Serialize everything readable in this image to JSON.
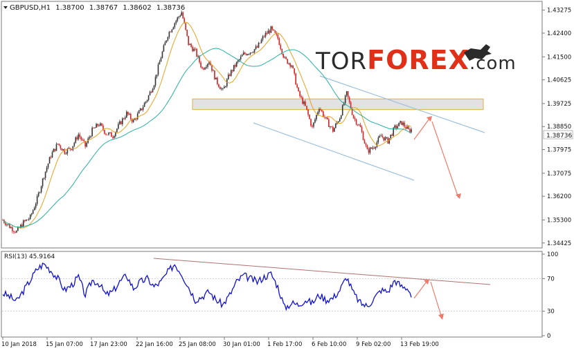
{
  "main_chart": {
    "header": {
      "symbol": "GBPUSD,H1",
      "open": "1.38700",
      "high": "1.38767",
      "low": "1.38602",
      "close": "1.38736"
    },
    "watermark": {
      "part1": "TOR",
      "part2": "FOREX",
      "part3": ".com"
    },
    "current_price_label": "1.38736",
    "colors": {
      "candle_up": "#333333",
      "candle_down": "#d42020",
      "ma_fast": "#e8a020",
      "ma_slow": "#27b0a0",
      "zone_fill": "#d8d8d8",
      "zone_border": "#e0b040",
      "channel": "#9fc0dc",
      "forecast_arrow": "#f07a6a"
    }
  },
  "rsi_panel": {
    "label": "RSI(13) 45.9164",
    "color": "#1010d0",
    "trendline_color": "#b07070"
  },
  "chart_data": [
    {
      "type": "candlestick",
      "title": "GBPUSD,H1",
      "ylim": [
        1.3442,
        1.4345
      ],
      "y_ticks": [
        "1.43275",
        "1.42400",
        "1.41500",
        "1.40625",
        "1.39725",
        "1.38850",
        "1.37975",
        "1.37075",
        "1.36200",
        "1.35300",
        "1.34425"
      ],
      "x_ticks": [
        "10 Jan 2018",
        "15 Jan 07:00",
        "17 Jan 23:00",
        "22 Jan 16:00",
        "25 Jan 08:00",
        "30 Jan 01:00",
        "1 Feb 17:00",
        "6 Feb 10:00",
        "9 Feb 02:00",
        "13 Feb 19:00"
      ],
      "series": [
        {
          "name": "GBPUSD",
          "x": [
            0,
            10,
            20,
            30,
            40,
            50,
            60,
            70,
            80,
            90,
            100,
            110,
            120,
            130,
            140,
            150,
            160,
            170,
            180,
            190,
            200,
            210,
            220,
            230,
            240,
            250,
            260,
            270,
            280,
            290,
            300,
            310,
            320,
            330,
            340,
            350,
            360,
            370,
            380,
            390,
            400,
            410,
            420,
            430,
            440,
            450,
            460,
            470,
            480,
            490,
            500,
            510,
            520,
            530,
            540,
            550,
            560,
            570,
            580,
            590,
            595
          ],
          "close": [
            1.353,
            1.3505,
            1.3485,
            1.352,
            1.354,
            1.361,
            1.37,
            1.3775,
            1.382,
            1.379,
            1.3805,
            1.3855,
            1.381,
            1.387,
            1.3895,
            1.386,
            1.385,
            1.3895,
            1.3935,
            1.3905,
            1.3945,
            1.399,
            1.405,
            1.415,
            1.4235,
            1.428,
            1.432,
            1.42,
            1.417,
            1.4105,
            1.4135,
            1.406,
            1.402,
            1.4085,
            1.4125,
            1.416,
            1.417,
            1.4185,
            1.423,
            1.4255,
            1.422,
            1.414,
            1.412,
            1.401,
            1.396,
            1.388,
            1.396,
            1.391,
            1.387,
            1.392,
            1.401,
            1.392,
            1.388,
            1.379,
            1.381,
            1.385,
            1.383,
            1.388,
            1.39,
            1.387,
            1.3874
          ]
        }
      ],
      "annotations": [
        "horizontal resistance zone near 1.3960-1.3990",
        "descending channel",
        "forecast arrow up then down"
      ]
    },
    {
      "type": "line",
      "title": "RSI(13) 45.9164",
      "ylim": [
        0,
        100
      ],
      "y_ticks": [
        "100",
        "70",
        "30",
        "0"
      ],
      "series": [
        {
          "name": "RSI(13)",
          "x": [
            0,
            10,
            20,
            30,
            40,
            50,
            60,
            70,
            80,
            90,
            100,
            110,
            120,
            130,
            140,
            150,
            160,
            170,
            180,
            190,
            200,
            210,
            220,
            230,
            240,
            250,
            260,
            270,
            280,
            290,
            300,
            310,
            320,
            330,
            340,
            350,
            360,
            370,
            380,
            390,
            400,
            410,
            420,
            430,
            440,
            450,
            460,
            470,
            480,
            490,
            500,
            510,
            520,
            530,
            540,
            550,
            560,
            570,
            580,
            590,
            595
          ],
          "values": [
            52,
            48,
            42,
            55,
            68,
            82,
            88,
            80,
            70,
            56,
            62,
            72,
            50,
            68,
            64,
            50,
            54,
            66,
            74,
            58,
            66,
            70,
            60,
            66,
            78,
            88,
            76,
            60,
            44,
            48,
            54,
            44,
            38,
            50,
            66,
            74,
            70,
            66,
            72,
            76,
            60,
            34,
            40,
            38,
            44,
            40,
            50,
            44,
            46,
            56,
            72,
            52,
            40,
            36,
            46,
            56,
            54,
            68,
            60,
            58,
            46
          ]
        }
      ]
    }
  ]
}
